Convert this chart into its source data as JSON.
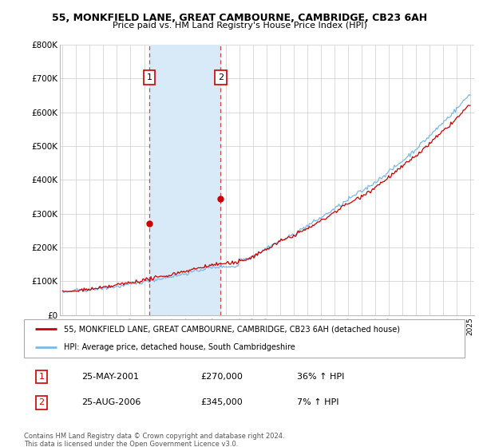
{
  "title": "55, MONKFIELD LANE, GREAT CAMBOURNE, CAMBRIDGE, CB23 6AH",
  "subtitle": "Price paid vs. HM Land Registry's House Price Index (HPI)",
  "legend_line1": "55, MONKFIELD LANE, GREAT CAMBOURNE, CAMBRIDGE, CB23 6AH (detached house)",
  "legend_line2": "HPI: Average price, detached house, South Cambridgeshire",
  "transaction1_date": "25-MAY-2001",
  "transaction1_price": "£270,000",
  "transaction1_change": "36% ↑ HPI",
  "transaction2_date": "25-AUG-2006",
  "transaction2_price": "£345,000",
  "transaction2_change": "7% ↑ HPI",
  "footer": "Contains HM Land Registry data © Crown copyright and database right 2024.\nThis data is licensed under the Open Government Licence v3.0.",
  "hpi_color": "#7ab8e8",
  "price_color": "#cc0000",
  "shade_color": "#d8eaf8",
  "vline_color": "#dd4444",
  "box_edge_color": "#cc0000",
  "ylim": [
    0,
    800000
  ],
  "yticks": [
    0,
    100000,
    200000,
    300000,
    400000,
    500000,
    600000,
    700000,
    800000
  ],
  "ytick_labels": [
    "£0",
    "£100K",
    "£200K",
    "£300K",
    "£400K",
    "£500K",
    "£600K",
    "£700K",
    "£800K"
  ],
  "transaction1_x": 2001.38,
  "transaction1_y": 270000,
  "transaction2_x": 2006.63,
  "transaction2_y": 345000,
  "xmin": 1994.8,
  "xmax": 2025.3
}
